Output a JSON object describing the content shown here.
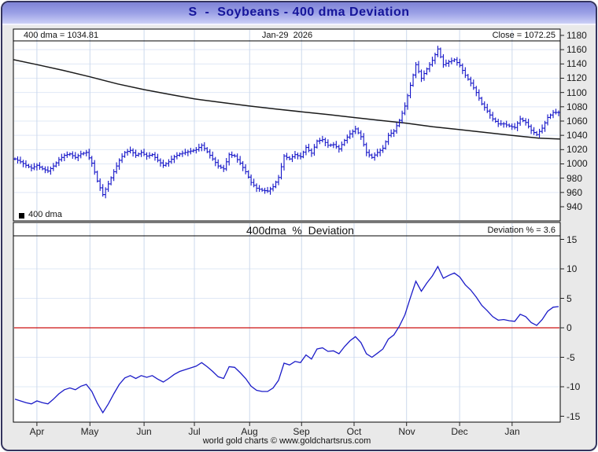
{
  "window": {
    "title": "S  -  Soybeans - 400 dma Deviation"
  },
  "price_panel": {
    "dma_value_label": "400 dma = 1034.81",
    "date_label": "Jan-29  2026",
    "close_label": "Close = 1072.25",
    "legend_label": "400 dma",
    "y_ticks": [
      1180,
      1160,
      1140,
      1120,
      1100,
      1080,
      1060,
      1040,
      1020,
      1000,
      980,
      960,
      940
    ]
  },
  "deviation_panel": {
    "title": "400dma  %  Deviation",
    "value_label": "Deviation % = 3.6",
    "y_ticks": [
      15,
      10,
      5,
      0,
      -5,
      -10,
      -15
    ]
  },
  "x_axis": {
    "months": [
      "Apr",
      "May",
      "Jun",
      "Jul",
      "Aug",
      "Sep",
      "Oct",
      "Nov",
      "Dec",
      "Jan"
    ]
  },
  "footer": {
    "credit": "world gold charts © www.goldchartsrus.com"
  },
  "colors": {
    "bar_blue": "#1414c8",
    "line_blue": "#1c1cc8",
    "dma_black": "#1a1a1a",
    "zero_red": "#cc1111",
    "grid": "#dfe8f6",
    "grid_month": "#ccd9ec",
    "title_navy": "#15159a"
  },
  "chart_data": [
    {
      "type": "bar",
      "subtype": "ohlc-daily-bars",
      "title": "S - Soybeans daily price with 400-day moving average",
      "ylim": [
        940,
        1180
      ],
      "y_tick_step": 20,
      "categories": [
        "Apr",
        "May",
        "Jun",
        "Jul",
        "Aug",
        "Sep",
        "Oct",
        "Nov",
        "Dec",
        "Jan"
      ],
      "month_fracs": [
        0.043,
        0.14,
        0.239,
        0.331,
        0.432,
        0.527,
        0.623,
        0.719,
        0.816,
        0.912
      ],
      "close": [
        1007,
        1003,
        998,
        994,
        998,
        993,
        990,
        997,
        1006,
        1012,
        1014,
        1009,
        1014,
        1016,
        1001,
        976,
        957,
        972,
        989,
        1005,
        1016,
        1019,
        1012,
        1016,
        1011,
        1013,
        1005,
        998,
        1003,
        1010,
        1014,
        1016,
        1018,
        1020,
        1026,
        1017,
        1007,
        997,
        993,
        1013,
        1011,
        1001,
        989,
        974,
        966,
        963,
        962,
        968,
        981,
        1011,
        1007,
        1013,
        1010,
        1023,
        1015,
        1032,
        1034,
        1026,
        1027,
        1021,
        1033,
        1042,
        1049,
        1038,
        1016,
        1009,
        1016,
        1022,
        1040,
        1046,
        1061,
        1081,
        1110,
        1139,
        1120,
        1133,
        1145,
        1161,
        1139,
        1143,
        1146,
        1138,
        1124,
        1113,
        1100,
        1084,
        1074,
        1063,
        1056,
        1056,
        1053,
        1051,
        1063,
        1058,
        1047,
        1041,
        1050,
        1065,
        1072,
        1072
      ],
      "dma_knots": [
        [
          0.0,
          1146
        ],
        [
          0.043,
          1139
        ],
        [
          0.091,
          1131
        ],
        [
          0.14,
          1122
        ],
        [
          0.191,
          1112
        ],
        [
          0.239,
          1104
        ],
        [
          0.288,
          1097
        ],
        [
          0.331,
          1091
        ],
        [
          0.381,
          1086
        ],
        [
          0.432,
          1081
        ],
        [
          0.479,
          1077
        ],
        [
          0.527,
          1073
        ],
        [
          0.576,
          1069
        ],
        [
          0.623,
          1065
        ],
        [
          0.67,
          1061
        ],
        [
          0.719,
          1057
        ],
        [
          0.767,
          1052
        ],
        [
          0.816,
          1048
        ],
        [
          0.863,
          1044
        ],
        [
          0.912,
          1040
        ],
        [
          0.961,
          1036
        ],
        [
          1.0,
          1034.8
        ]
      ],
      "annotations": {
        "dma_latest": 1034.81,
        "close_latest": 1072.25,
        "date": "Jan-29 2026"
      }
    },
    {
      "type": "line",
      "title": "400dma % Deviation",
      "ylim": [
        -15,
        15
      ],
      "y_tick_step": 5,
      "zero_line": true,
      "latest_value": 3.6,
      "values": [
        -12.1,
        -12.4,
        -12.7,
        -12.9,
        -12.4,
        -12.7,
        -12.9,
        -12.1,
        -11.2,
        -10.5,
        -10.2,
        -10.5,
        -9.9,
        -9.6,
        -10.8,
        -12.8,
        -14.4,
        -12.9,
        -11.2,
        -9.6,
        -8.5,
        -8.1,
        -8.6,
        -8.1,
        -8.4,
        -8.1,
        -8.7,
        -9.2,
        -8.6,
        -7.9,
        -7.4,
        -7.1,
        -6.8,
        -6.5,
        -5.9,
        -6.6,
        -7.4,
        -8.3,
        -8.6,
        -6.6,
        -6.7,
        -7.6,
        -8.6,
        -9.9,
        -10.6,
        -10.8,
        -10.8,
        -10.2,
        -8.9,
        -6.0,
        -6.3,
        -5.7,
        -5.9,
        -4.6,
        -5.3,
        -3.6,
        -3.4,
        -4.0,
        -3.9,
        -4.4,
        -3.2,
        -2.2,
        -1.5,
        -2.5,
        -4.4,
        -5.0,
        -4.3,
        -3.6,
        -1.9,
        -1.2,
        0.3,
        2.2,
        5.1,
        7.9,
        6.2,
        7.6,
        8.8,
        10.4,
        8.4,
        8.9,
        9.3,
        8.6,
        7.3,
        6.4,
        5.2,
        3.8,
        2.9,
        1.9,
        1.3,
        1.4,
        1.2,
        1.1,
        2.3,
        1.9,
        0.9,
        0.4,
        1.4,
        2.8,
        3.5,
        3.6
      ]
    }
  ]
}
